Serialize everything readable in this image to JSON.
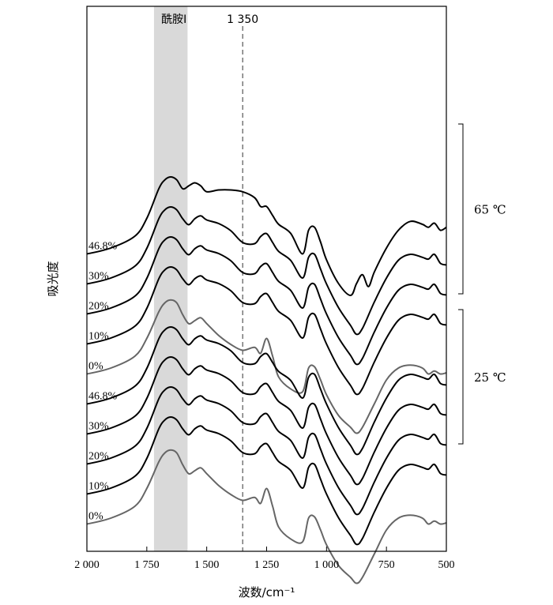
{
  "chart_data": {
    "type": "line",
    "title": "",
    "xlabel": "波数/cm⁻¹",
    "ylabel": "吸光度",
    "xlim": [
      2000,
      500
    ],
    "x_reversed": true,
    "xticks": [
      2000,
      1750,
      1500,
      1250,
      1000,
      750,
      500
    ],
    "xtick_labels": [
      "2 000",
      "1 750",
      "1 500",
      "1 250",
      "1 000",
      "750",
      "500"
    ],
    "highlight_band": {
      "label": "酰胺I",
      "range": [
        1720,
        1580
      ],
      "color": "#d9d9d9"
    },
    "reference_line": {
      "label": "1 350",
      "x": 1350,
      "style": "dashed"
    },
    "groups": [
      {
        "label": "65 ℃",
        "series": [
          "46.8%",
          "30%",
          "20%",
          "10%",
          "0%"
        ]
      },
      {
        "label": "25 ℃",
        "series": [
          "46.8%",
          "30%",
          "20%",
          "10%",
          "0%"
        ]
      }
    ],
    "series": [
      {
        "name": "46.8%",
        "group": "65 ℃",
        "color": "#000000",
        "offset": 9,
        "shape": "B"
      },
      {
        "name": "30%",
        "group": "65 ℃",
        "color": "#000000",
        "offset": 8,
        "shape": "A"
      },
      {
        "name": "20%",
        "group": "65 ℃",
        "color": "#000000",
        "offset": 7,
        "shape": "A"
      },
      {
        "name": "10%",
        "group": "65 ℃",
        "color": "#000000",
        "offset": 6,
        "shape": "A"
      },
      {
        "name": "0%",
        "group": "65 ℃",
        "color": "#666666",
        "offset": 5,
        "shape": "C"
      },
      {
        "name": "46.8%",
        "group": "25 ℃",
        "color": "#000000",
        "offset": 4,
        "shape": "A"
      },
      {
        "name": "30%",
        "group": "25 ℃",
        "color": "#000000",
        "offset": 3,
        "shape": "A"
      },
      {
        "name": "20%",
        "group": "25 ℃",
        "color": "#000000",
        "offset": 2,
        "shape": "A"
      },
      {
        "name": "10%",
        "group": "25 ℃",
        "color": "#000000",
        "offset": 1,
        "shape": "A"
      },
      {
        "name": "0%",
        "group": "25 ℃",
        "color": "#666666",
        "offset": 0,
        "shape": "C"
      }
    ],
    "shapes": {
      "A": {
        "x": [
          2000,
          1900,
          1800,
          1750,
          1700,
          1675,
          1650,
          1625,
          1600,
          1575,
          1550,
          1525,
          1500,
          1450,
          1400,
          1350,
          1300,
          1275,
          1250,
          1225,
          1200,
          1150,
          1100,
          1075,
          1050,
          1025,
          1000,
          950,
          900,
          875,
          850,
          800,
          750,
          700,
          650,
          600,
          575,
          550,
          525,
          500
        ],
        "y": [
          0.3,
          0.4,
          0.6,
          0.9,
          1.4,
          1.55,
          1.6,
          1.55,
          1.4,
          1.3,
          1.4,
          1.45,
          1.38,
          1.32,
          1.2,
          1.0,
          0.98,
          1.1,
          1.15,
          1.0,
          0.85,
          0.7,
          0.4,
          0.75,
          0.8,
          0.55,
          0.3,
          -0.1,
          -0.4,
          -0.55,
          -0.45,
          0.0,
          0.4,
          0.7,
          0.8,
          0.75,
          0.72,
          0.8,
          0.65,
          0.62
        ]
      },
      "B": {
        "x": [
          2000,
          1900,
          1800,
          1750,
          1700,
          1675,
          1650,
          1625,
          1600,
          1575,
          1550,
          1525,
          1500,
          1450,
          1400,
          1350,
          1300,
          1275,
          1250,
          1225,
          1200,
          1150,
          1100,
          1075,
          1050,
          1025,
          1000,
          950,
          900,
          875,
          850,
          825,
          800,
          750,
          700,
          650,
          600,
          575,
          550,
          525,
          500
        ],
        "y": [
          0.3,
          0.4,
          0.6,
          0.9,
          1.4,
          1.55,
          1.6,
          1.55,
          1.4,
          1.45,
          1.5,
          1.45,
          1.35,
          1.38,
          1.38,
          1.35,
          1.25,
          1.1,
          1.1,
          0.95,
          0.8,
          0.65,
          0.3,
          0.7,
          0.75,
          0.5,
          0.2,
          -0.2,
          -0.4,
          -0.2,
          -0.05,
          -0.25,
          0.0,
          0.4,
          0.7,
          0.85,
          0.8,
          0.75,
          0.82,
          0.7,
          0.75
        ]
      },
      "C": {
        "x": [
          2000,
          1900,
          1800,
          1750,
          1700,
          1675,
          1650,
          1625,
          1600,
          1575,
          1550,
          1525,
          1500,
          1450,
          1400,
          1350,
          1300,
          1275,
          1250,
          1225,
          1200,
          1150,
          1100,
          1075,
          1050,
          1025,
          1000,
          950,
          900,
          875,
          850,
          800,
          750,
          700,
          650,
          600,
          575,
          550,
          525,
          500
        ],
        "y": [
          0.3,
          0.4,
          0.6,
          0.9,
          1.35,
          1.5,
          1.55,
          1.5,
          1.3,
          1.15,
          1.2,
          1.25,
          1.15,
          0.95,
          0.8,
          0.7,
          0.75,
          0.65,
          0.9,
          0.6,
          0.25,
          0.05,
          0.0,
          0.4,
          0.42,
          0.2,
          -0.05,
          -0.4,
          -0.6,
          -0.7,
          -0.6,
          -0.2,
          0.2,
          0.4,
          0.45,
          0.4,
          0.3,
          0.35,
          0.3,
          0.32
        ]
      }
    }
  }
}
